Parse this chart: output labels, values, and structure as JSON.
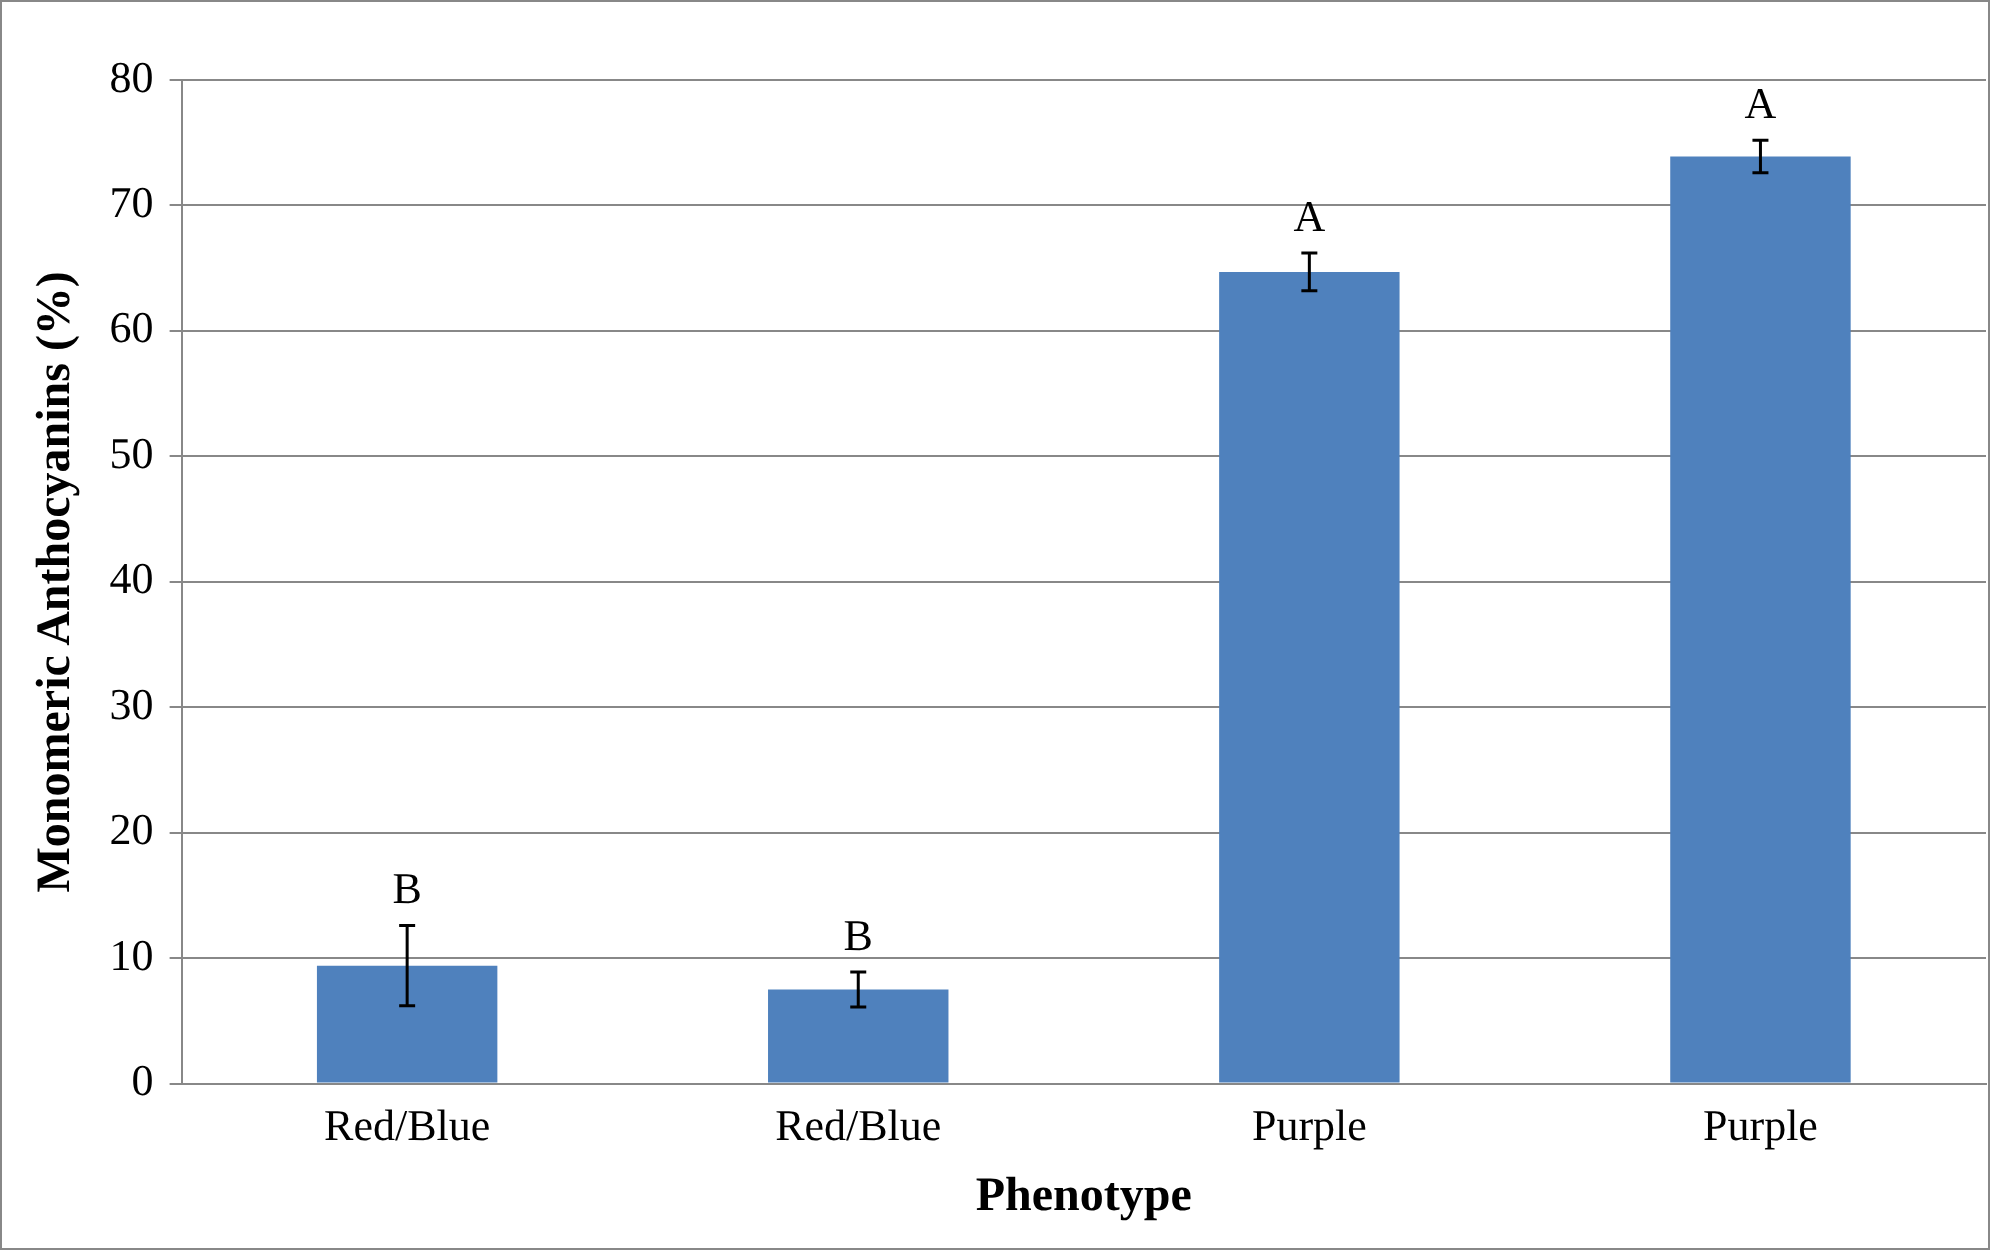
{
  "chart_data": {
    "type": "bar",
    "xlabel": "Phenotype",
    "ylabel": "Monomeric Anthocyanins (%)",
    "categories": [
      "Red/Blue",
      "Red/Blue",
      "Purple",
      "Purple"
    ],
    "values": [
      9.4,
      7.5,
      64.7,
      73.9
    ],
    "color": "#4f81bd",
    "errors": [
      3.2,
      1.4,
      1.5,
      1.3
    ],
    "ylim": [
      0,
      80
    ],
    "yticks": [
      0,
      10,
      20,
      30,
      40,
      50,
      60,
      70,
      80
    ],
    "grid": "y",
    "annotations": [
      "B",
      "B",
      "A",
      "A"
    ]
  }
}
